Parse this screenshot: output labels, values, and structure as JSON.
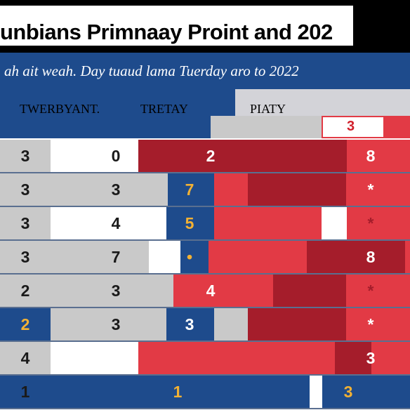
{
  "title": "unbians Primnaay Proint  and 202",
  "subtitle": "ah ait weah. Day tuaud lama Tuerday aro to 2022",
  "columns": {
    "col1": "TWERBYANT.",
    "col2": "TRETAY",
    "col3": "PIATY"
  },
  "header_marker": "3",
  "rows": [
    {
      "c1": "3",
      "c2": "0",
      "c3": "",
      "c4": "2",
      "c5": "8"
    },
    {
      "c1": "3",
      "c2": "3",
      "c3": "7",
      "c4": "",
      "c5": "*"
    },
    {
      "c1": "3",
      "c2": "4",
      "c3": "5",
      "c4": "",
      "c5": "*"
    },
    {
      "c1": "3",
      "c2": "7",
      "c3": "•",
      "c4": "",
      "c5": "8"
    },
    {
      "c1": "2",
      "c2": "3",
      "c3": "",
      "c4": "4",
      "c5": "*"
    },
    {
      "c1": "2",
      "c2": "3",
      "c3": "3",
      "c4": "",
      "c5": "*"
    },
    {
      "c1": "4",
      "c2": "",
      "c3": "",
      "c4": "",
      "c5": "3"
    },
    {
      "c1": "1",
      "c2": "",
      "c3": "1",
      "c4": "",
      "c5": "3"
    }
  ],
  "colors": {
    "blue": "#1e4b8c",
    "red": "#e23a45",
    "dark_red": "#a51d2b",
    "gray": "#c9c9c9",
    "white": "#ffffff"
  }
}
